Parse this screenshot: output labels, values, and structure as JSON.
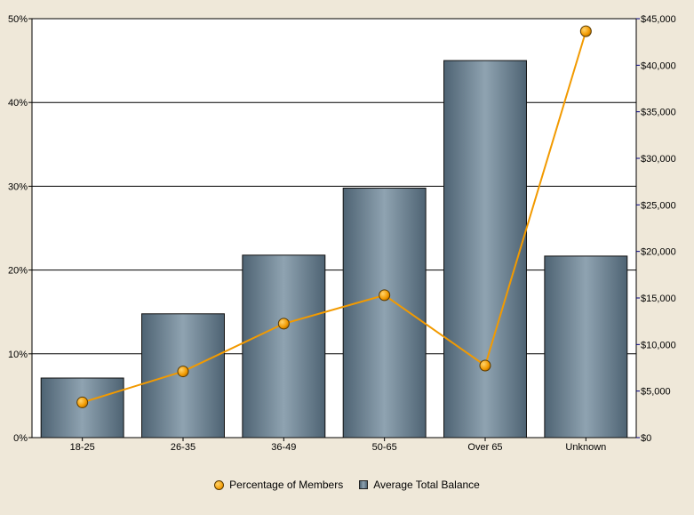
{
  "chart_data": {
    "type": "bar",
    "categories": [
      "18-25",
      "26-35",
      "36-49",
      "50-65",
      "Over 65",
      "Unknown"
    ],
    "series": [
      {
        "name": "Average Total Balance",
        "type": "bar",
        "axis": "right",
        "values": [
          6400,
          13300,
          19600,
          26800,
          40500,
          19500
        ]
      },
      {
        "name": "Percentage of Members",
        "type": "line",
        "axis": "left",
        "values": [
          4.2,
          7.9,
          13.6,
          17.0,
          8.6,
          48.5
        ]
      }
    ],
    "left_axis": {
      "ylim": [
        0,
        50
      ],
      "ticks": [
        0,
        10,
        20,
        30,
        40,
        50
      ],
      "tick_labels": [
        "0%",
        "10%",
        "20%",
        "30%",
        "40%",
        "50%"
      ]
    },
    "right_axis": {
      "ylim": [
        0,
        45000
      ],
      "ticks": [
        0,
        5000,
        10000,
        15000,
        20000,
        25000,
        30000,
        35000,
        40000,
        45000
      ],
      "tick_labels": [
        "$0",
        "$5,000",
        "$10,000",
        "$15,000",
        "$20,000",
        "$25,000",
        "$30,000",
        "$35,000",
        "$40,000",
        "$45,000"
      ]
    },
    "title": "",
    "xlabel": "",
    "ylabel": "",
    "grid": true,
    "legend_position": "bottom",
    "colors": {
      "line": "#f29a00",
      "marker": "#f5a623",
      "bar_dark": "#4e6373",
      "bar_light": "#8fa3b1",
      "background": "#efe8d9",
      "plot_background": "#ffffff"
    }
  },
  "legend": {
    "items": [
      {
        "label": "Percentage of Members",
        "icon": "circle-marker-icon"
      },
      {
        "label": "Average Total Balance",
        "icon": "bar-swatch-icon"
      }
    ]
  }
}
